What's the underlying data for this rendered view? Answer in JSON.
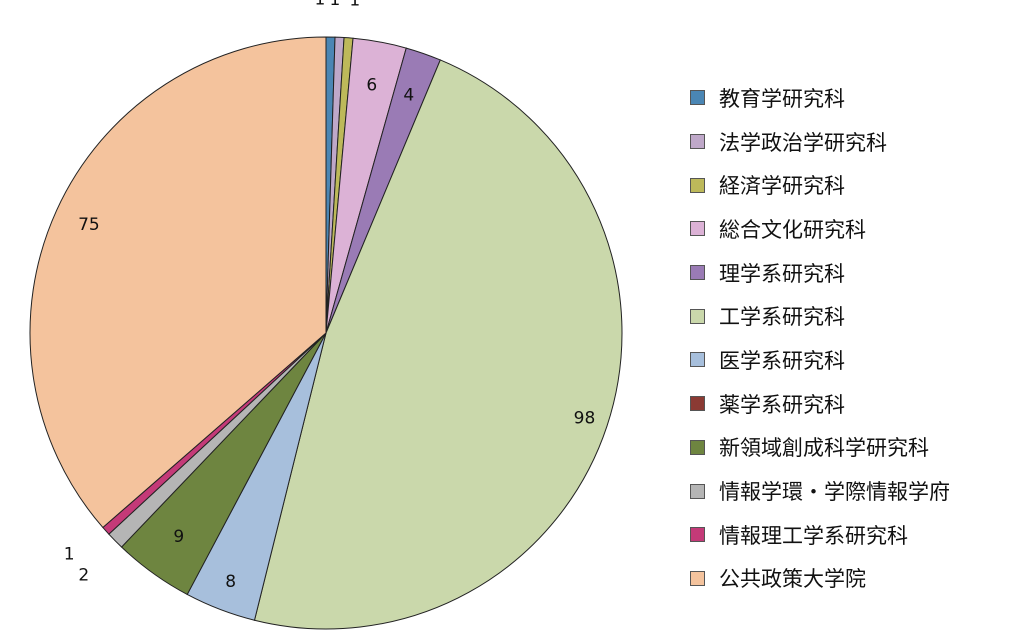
{
  "chart_data": {
    "type": "pie",
    "start_angle_deg": 0,
    "direction": "clockwise",
    "legend_position": "right",
    "categories": [
      "教育学研究科",
      "法学政治学研究科",
      "経済学研究科",
      "総合文化研究科",
      "理学系研究科",
      "工学系研究科",
      "医学系研究科",
      "薬学系研究科",
      "新領域創成科学研究科",
      "情報学環・学際情報学府",
      "情報理工学系研究科",
      "公共政策大学院"
    ],
    "values": [
      1,
      1,
      1,
      6,
      4,
      98,
      8,
      0,
      9,
      2,
      1,
      75
    ],
    "value_labels": [
      "1",
      "1",
      "1",
      "6",
      "4",
      "98",
      "8",
      "",
      "9",
      "2",
      "1",
      "75"
    ],
    "colors": [
      "#4a86b4",
      "#bfa8c9",
      "#bdb95a",
      "#dcb2d6",
      "#9a7bb5",
      "#cad8ab",
      "#a7bfdc",
      "#8b3a33",
      "#6e8540",
      "#b5b5b5",
      "#c43a78",
      "#f4c39d"
    ]
  }
}
